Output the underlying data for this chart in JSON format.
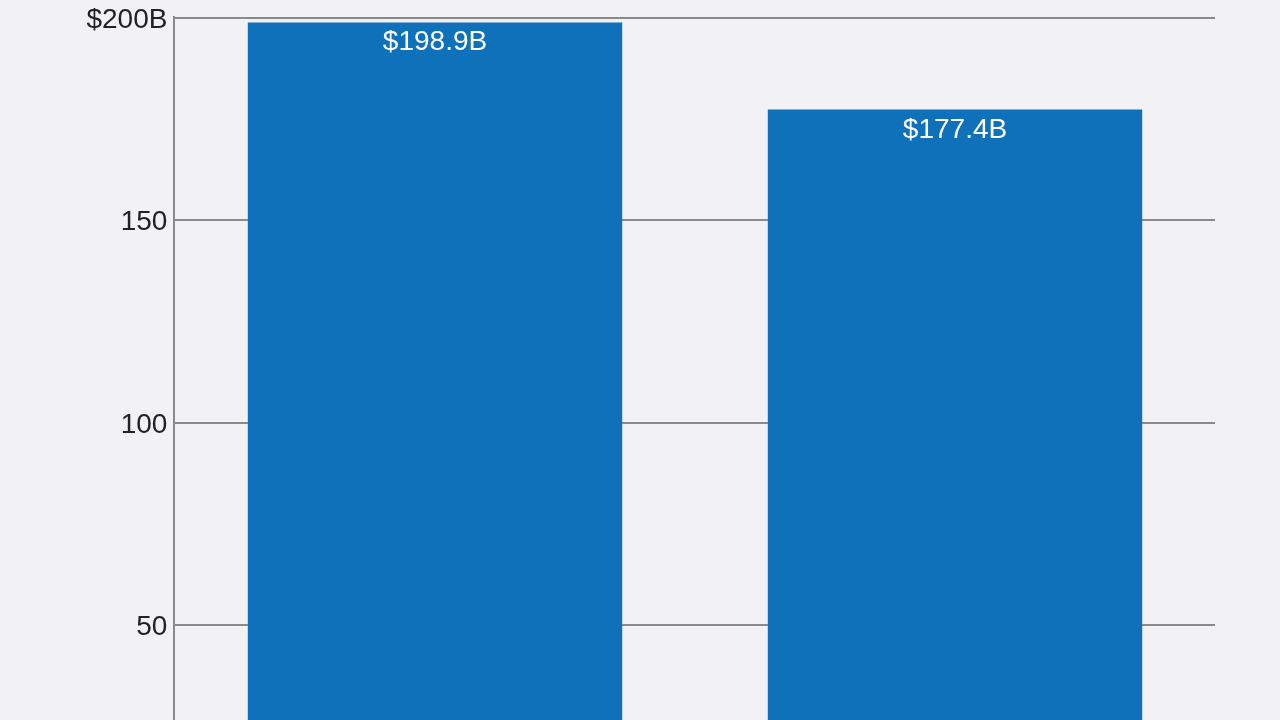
{
  "chart_data": {
    "type": "bar",
    "categories": [
      null,
      null
    ],
    "values": [
      198.9,
      177.4
    ],
    "value_labels": [
      "$198.9B",
      "$177.4B"
    ],
    "color": "#1071bb",
    "ylim": [
      26.6,
      200.5
    ],
    "yticks": [
      {
        "value": 200,
        "label": "$200B"
      },
      150,
      100,
      50
    ],
    "grid": "y",
    "legend": false
  }
}
